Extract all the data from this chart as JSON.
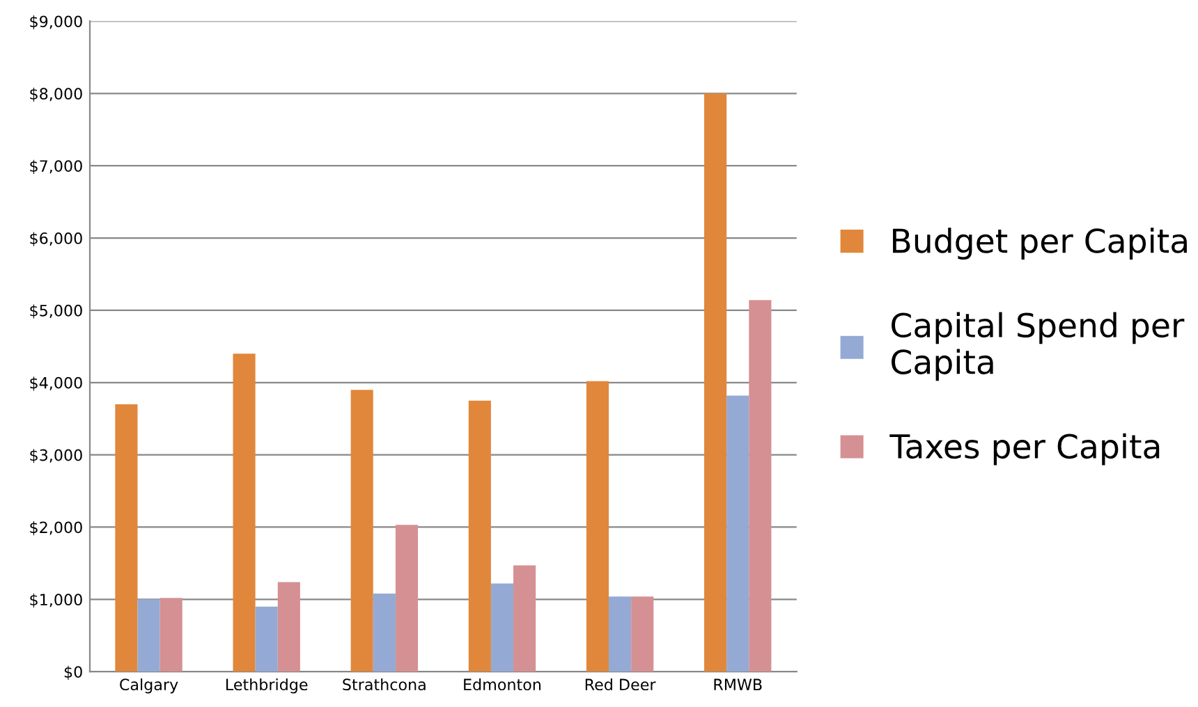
{
  "chart_data": {
    "type": "bar",
    "categories": [
      "Calgary",
      "Lethbridge",
      "Strathcona",
      "Edmonton",
      "Red Deer",
      "RMWB"
    ],
    "series": [
      {
        "name": "Budget per Capita",
        "color": "#e0873c",
        "values": [
          3700,
          4400,
          3900,
          3750,
          4020,
          8000
        ]
      },
      {
        "name": "Capital Spend per Capita",
        "color": "#94aad4",
        "values": [
          1000,
          900,
          1080,
          1220,
          1040,
          3820
        ]
      },
      {
        "name": "Taxes per Capita",
        "color": "#d59093",
        "values": [
          1020,
          1240,
          2030,
          1470,
          1040,
          5140
        ]
      }
    ],
    "ylim": [
      0,
      9000
    ],
    "yticks": [
      {
        "value": 0,
        "label": "$0"
      },
      {
        "value": 1000,
        "label": "$1,000"
      },
      {
        "value": 2000,
        "label": "$2,000"
      },
      {
        "value": 3000,
        "label": "$3,000"
      },
      {
        "value": 4000,
        "label": "$4,000"
      },
      {
        "value": 5000,
        "label": "$5,000"
      },
      {
        "value": 6000,
        "label": "$6,000"
      },
      {
        "value": 7000,
        "label": "$7,000"
      },
      {
        "value": 8000,
        "label": "$8,000"
      },
      {
        "value": 9000,
        "label": "$9,000"
      }
    ],
    "grid": "y",
    "legend": "right"
  }
}
